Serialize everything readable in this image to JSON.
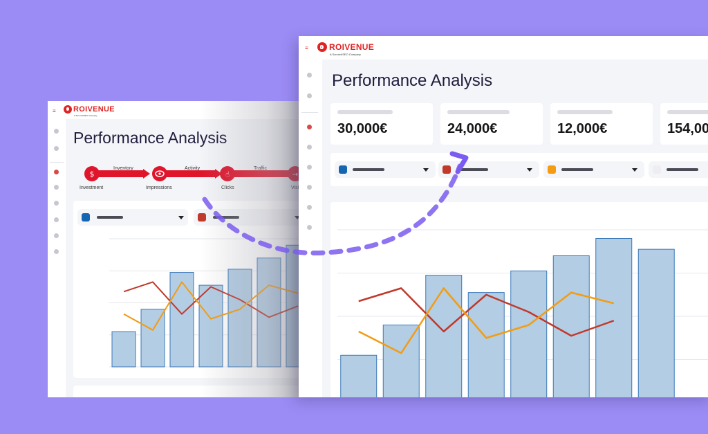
{
  "brand": {
    "name": "ROIVENUE",
    "tagline": "A ScrunchSEO Company",
    "color": "#e02424"
  },
  "page_title": "Performance Analysis",
  "kpis": [
    "30,000€",
    "24,000€",
    "12,000€",
    "154,00"
  ],
  "funnel": {
    "stages": [
      "Investment",
      "Impressions",
      "Clicks",
      "Visi"
    ],
    "connectors": [
      "Inventory",
      "Activity",
      "Traffic"
    ]
  },
  "filters": [
    {
      "color": "#1565b0"
    },
    {
      "color": "#c0392b"
    },
    {
      "color": "#f39c12"
    },
    {
      "color": "#f0f0f3"
    }
  ],
  "icons": [
    "menu-icon",
    "dollar-icon",
    "eye-icon",
    "click-hand-icon",
    "arrow-in-icon",
    "dropdown-caret-icon"
  ],
  "colors": {
    "background": "#9b8cf5",
    "bar_fill": "#b3cde4",
    "bar_stroke": "#3a78b8",
    "line_red": "#c0392b",
    "line_orange": "#f39c12",
    "curve_arrow": "#7b5cf0"
  },
  "chart_data": {
    "type": "bar",
    "bars": [
      2.2,
      3.6,
      5.9,
      5.1,
      6.1,
      6.8,
      7.6,
      7.1
    ],
    "series": [
      {
        "type": "line",
        "values": [
          4.7,
          5.3,
          3.3,
          5.0,
          4.2,
          3.1,
          3.8
        ]
      },
      {
        "type": "line",
        "values": [
          3.3,
          2.3,
          5.3,
          3.0,
          3.6,
          5.1,
          4.6
        ]
      }
    ],
    "ylim": [
      0,
      8
    ],
    "grid": true
  }
}
